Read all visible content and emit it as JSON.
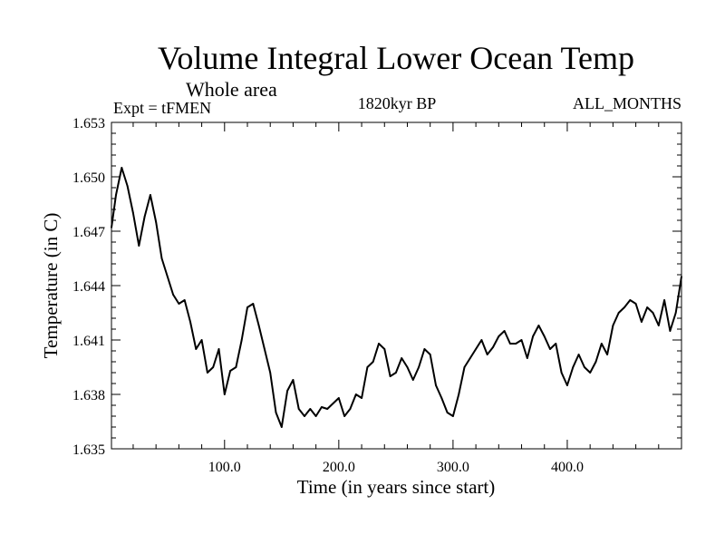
{
  "chart_data": {
    "type": "line",
    "title": "Volume Integral Lower Ocean Temp",
    "subtitle": "Whole area",
    "left_label": "Expt = tFMEN",
    "center_label": "1820kyr BP",
    "right_label": "ALL_MONTHS",
    "xlabel": "Time (in years since start)",
    "ylabel": "Temperature (in C)",
    "xlim": [
      1,
      500
    ],
    "ylim": [
      1.635,
      1.653
    ],
    "x_ticks": [
      100,
      200,
      300,
      400
    ],
    "x_tick_labels": [
      "100.0",
      "200.0",
      "300.0",
      "400.0"
    ],
    "y_ticks": [
      1.635,
      1.638,
      1.641,
      1.644,
      1.647,
      1.65,
      1.653
    ],
    "y_tick_labels": [
      "1.635",
      "1.638",
      "1.641",
      "1.644",
      "1.647",
      "1.650",
      "1.653"
    ],
    "series": [
      {
        "name": "tFMEN",
        "color": "#000000",
        "x": [
          1,
          5,
          10,
          15,
          20,
          25,
          30,
          35,
          40,
          45,
          50,
          55,
          60,
          65,
          70,
          75,
          80,
          85,
          90,
          95,
          100,
          105,
          110,
          115,
          120,
          125,
          130,
          135,
          140,
          145,
          150,
          155,
          160,
          165,
          170,
          175,
          180,
          185,
          190,
          195,
          200,
          205,
          210,
          215,
          220,
          225,
          230,
          235,
          240,
          245,
          250,
          255,
          260,
          265,
          270,
          275,
          280,
          285,
          290,
          295,
          300,
          305,
          310,
          315,
          320,
          325,
          330,
          335,
          340,
          345,
          350,
          355,
          360,
          365,
          370,
          375,
          380,
          385,
          390,
          395,
          400,
          405,
          410,
          415,
          420,
          425,
          430,
          435,
          440,
          445,
          450,
          455,
          460,
          465,
          470,
          475,
          480,
          485,
          490,
          495,
          500
        ],
        "values": [
          1.6472,
          1.649,
          1.6505,
          1.6495,
          1.648,
          1.6462,
          1.6478,
          1.649,
          1.6475,
          1.6455,
          1.6445,
          1.6435,
          1.643,
          1.6432,
          1.642,
          1.6405,
          1.641,
          1.6392,
          1.6395,
          1.6405,
          1.638,
          1.6393,
          1.6395,
          1.641,
          1.6428,
          1.643,
          1.6418,
          1.6405,
          1.6392,
          1.637,
          1.6362,
          1.6382,
          1.6388,
          1.6372,
          1.6368,
          1.6372,
          1.6368,
          1.6373,
          1.6372,
          1.6375,
          1.6378,
          1.6368,
          1.6372,
          1.638,
          1.6378,
          1.6395,
          1.6398,
          1.6408,
          1.6405,
          1.639,
          1.6392,
          1.64,
          1.6395,
          1.6388,
          1.6395,
          1.6405,
          1.6402,
          1.6385,
          1.6378,
          1.637,
          1.6368,
          1.638,
          1.6395,
          1.64,
          1.6405,
          1.641,
          1.6402,
          1.6406,
          1.6412,
          1.6415,
          1.6408,
          1.6408,
          1.641,
          1.64,
          1.6412,
          1.6418,
          1.6412,
          1.6405,
          1.6408,
          1.6392,
          1.6385,
          1.6395,
          1.6402,
          1.6395,
          1.6392,
          1.6398,
          1.6408,
          1.6402,
          1.6418,
          1.6425,
          1.6428,
          1.6432,
          1.643,
          1.642,
          1.6428,
          1.6425,
          1.6418,
          1.6432,
          1.6415,
          1.6425,
          1.6445
        ]
      }
    ]
  }
}
